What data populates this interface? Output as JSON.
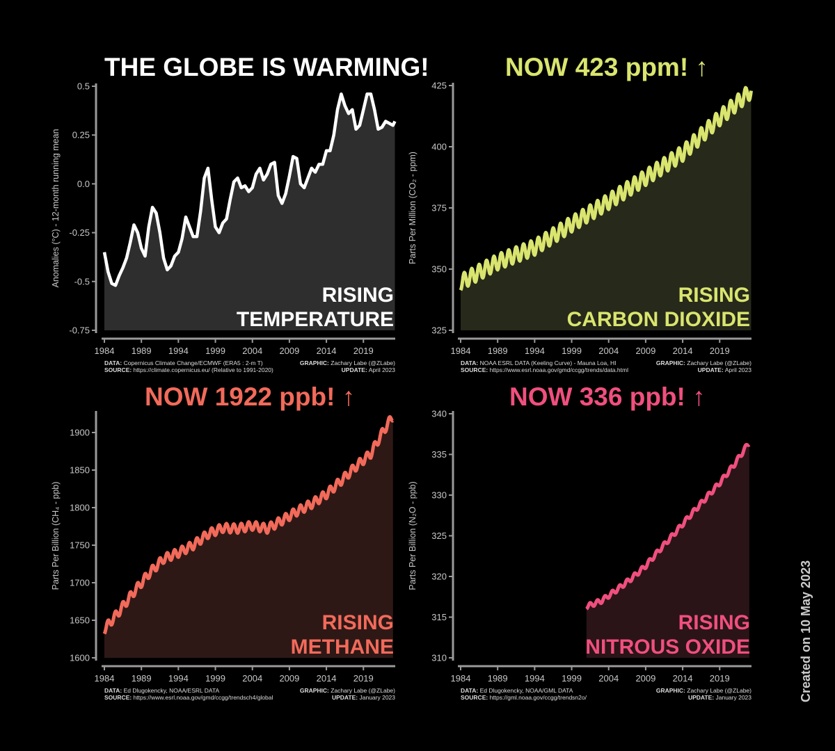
{
  "footer_note": "Created on 10 May 2023",
  "chart_data": [
    {
      "type": "area",
      "headline": "THE GLOBE IS WARMING!",
      "headline_color": "#ffffff",
      "label_lines": [
        "RISING",
        "TEMPERATURE"
      ],
      "ylabel": "Anomalies (°C) - 12-month running mean",
      "line_color": "#ffffff",
      "fill_color": "#2e2e2e",
      "ylim": [
        -0.75,
        0.5
      ],
      "yticks": [
        -0.75,
        -0.5,
        -0.25,
        0.0,
        0.25,
        0.5
      ],
      "ytick_labels": [
        "-0.75",
        "-0.5",
        "-0.25",
        "0.0",
        "0.25",
        "0.5"
      ],
      "xlim": [
        1984,
        2023.3
      ],
      "xticks": [
        1984,
        1989,
        1994,
        1999,
        2004,
        2009,
        2014,
        2019
      ],
      "x": [
        1984.0,
        1984.5,
        1985.0,
        1985.5,
        1986.0,
        1986.5,
        1987.0,
        1987.5,
        1988.0,
        1988.5,
        1989.0,
        1989.5,
        1990.0,
        1990.5,
        1991.0,
        1991.5,
        1992.0,
        1992.5,
        1993.0,
        1993.5,
        1994.0,
        1994.5,
        1995.0,
        1995.5,
        1996.0,
        1996.5,
        1997.0,
        1997.5,
        1998.0,
        1998.5,
        1999.0,
        1999.5,
        2000.0,
        2000.5,
        2001.0,
        2001.5,
        2002.0,
        2002.5,
        2003.0,
        2003.5,
        2004.0,
        2004.5,
        2005.0,
        2005.5,
        2006.0,
        2006.5,
        2007.0,
        2007.5,
        2008.0,
        2008.5,
        2009.0,
        2009.5,
        2010.0,
        2010.5,
        2011.0,
        2011.5,
        2012.0,
        2012.5,
        2013.0,
        2013.5,
        2014.0,
        2014.5,
        2015.0,
        2015.5,
        2016.0,
        2016.5,
        2017.0,
        2017.5,
        2018.0,
        2018.5,
        2019.0,
        2019.5,
        2020.0,
        2020.5,
        2021.0,
        2021.5,
        2022.0,
        2022.5,
        2023.0,
        2023.25
      ],
      "values": [
        -0.35,
        -0.45,
        -0.51,
        -0.52,
        -0.47,
        -0.43,
        -0.38,
        -0.3,
        -0.21,
        -0.25,
        -0.33,
        -0.37,
        -0.22,
        -0.12,
        -0.15,
        -0.25,
        -0.38,
        -0.44,
        -0.42,
        -0.37,
        -0.35,
        -0.28,
        -0.17,
        -0.22,
        -0.27,
        -0.27,
        -0.14,
        0.03,
        0.08,
        -0.08,
        -0.22,
        -0.25,
        -0.2,
        -0.18,
        -0.08,
        0.01,
        0.03,
        -0.02,
        -0.01,
        -0.04,
        -0.02,
        0.05,
        0.08,
        0.02,
        0.05,
        0.1,
        0.11,
        -0.06,
        -0.1,
        -0.05,
        0.04,
        0.14,
        0.13,
        0.0,
        -0.02,
        0.03,
        0.08,
        0.06,
        0.1,
        0.1,
        0.17,
        0.17,
        0.25,
        0.38,
        0.46,
        0.4,
        0.36,
        0.38,
        0.28,
        0.3,
        0.38,
        0.46,
        0.46,
        0.38,
        0.28,
        0.29,
        0.32,
        0.31,
        0.3,
        0.32
      ]
    },
    {
      "type": "area",
      "headline": "NOW 423 ppm! ↑",
      "headline_color": "#d9e56e",
      "label_lines": [
        "RISING",
        "CARBON DIOXIDE"
      ],
      "ylabel": "Parts Per Million (CO₂ - ppm)",
      "line_color": "#d9e56e",
      "fill_color": "#27291b",
      "ylim": [
        325,
        425
      ],
      "yticks": [
        325,
        350,
        375,
        400,
        425
      ],
      "ytick_labels": [
        "325",
        "350",
        "375",
        "400",
        "425"
      ],
      "xlim": [
        1984,
        2023.3
      ],
      "xticks": [
        1984,
        1989,
        1994,
        1999,
        2004,
        2009,
        2014,
        2019
      ],
      "x": [
        1984,
        1989,
        1994,
        1999,
        2004,
        2009,
        2014,
        2019,
        2023.3
      ],
      "values": [
        344.6,
        352.9,
        358.9,
        368.4,
        377.6,
        387.4,
        397.3,
        411.8,
        423.0
      ],
      "seasonal_amplitude_ppm": 3.2
    },
    {
      "type": "area",
      "headline": "NOW 1922 ppb! ↑",
      "headline_color": "#f26a5a",
      "label_lines": [
        "RISING",
        "METHANE"
      ],
      "ylabel": "Parts Per Billion (CH₄ - ppb)",
      "line_color": "#f26a5a",
      "fill_color": "#2e1816",
      "ylim": [
        1600,
        1925
      ],
      "yticks": [
        1600,
        1650,
        1700,
        1750,
        1800,
        1850,
        1900
      ],
      "ytick_labels": [
        "1600",
        "1650",
        "1700",
        "1750",
        "1800",
        "1850",
        "1900"
      ],
      "xlim": [
        1984,
        2023.3
      ],
      "xticks": [
        1984,
        1989,
        1994,
        1999,
        2004,
        2009,
        2014,
        2019
      ],
      "x": [
        1984,
        1986,
        1988,
        1990,
        1992,
        1994,
        1996,
        1998,
        2000,
        2002,
        2004,
        2006,
        2008,
        2010,
        2012,
        2014,
        2016,
        2018,
        2020,
        2021,
        2022,
        2023.0
      ],
      "values": [
        1638,
        1662,
        1688,
        1712,
        1732,
        1740,
        1750,
        1765,
        1773,
        1772,
        1776,
        1772,
        1783,
        1795,
        1805,
        1818,
        1836,
        1855,
        1872,
        1890,
        1907,
        1922
      ],
      "seasonal_amplitude_ppb": 6
    },
    {
      "type": "area",
      "headline": "NOW 336 ppb! ↑",
      "headline_color": "#f04f7e",
      "label_lines": [
        "RISING",
        "NITROUS OXIDE"
      ],
      "ylabel": "Parts Per Billion (N₂O - ppb)",
      "line_color": "#f04f7e",
      "fill_color": "#2a1418",
      "ylim": [
        310,
        340
      ],
      "yticks": [
        310,
        315,
        320,
        325,
        330,
        335,
        340
      ],
      "ytick_labels": [
        "310",
        "315",
        "320",
        "325",
        "330",
        "335",
        "340"
      ],
      "xlim": [
        1984,
        2023.3
      ],
      "xticks": [
        1984,
        1989,
        1994,
        1999,
        2004,
        2009,
        2014,
        2019
      ],
      "x": [
        2001,
        2003,
        2005,
        2007,
        2009,
        2011,
        2013,
        2015,
        2017,
        2019,
        2021,
        2023.0
      ],
      "values": [
        316.3,
        317.0,
        318.3,
        319.7,
        321.3,
        323.4,
        325.4,
        327.5,
        329.5,
        331.5,
        333.8,
        336.5
      ],
      "seasonal_amplitude_ppb": 0.3
    }
  ],
  "credits": [
    {
      "data_label": "DATA:",
      "data_text": "Copernicus Climate Change/ECMWF (ERA5 : 2-m T)",
      "source_label": "SOURCE:",
      "source_text": "https://climate.copernicus.eu/ (Relative to 1991-2020)",
      "graphic_label": "GRAPHIC:",
      "graphic_text": "Zachary Labe (@ZLabe)",
      "update_label": "UPDATE:",
      "update_text": "April 2023"
    },
    {
      "data_label": "DATA:",
      "data_text": "NOAA ESRL DATA (Keeling Curve) - Mauna Loa, HI",
      "source_label": "SOURCE:",
      "source_text": "https://www.esrl.noaa.gov/gmd/ccgg/trends/data.html",
      "graphic_label": "GRAPHIC:",
      "graphic_text": "Zachary Labe (@ZLabe)",
      "update_label": "UPDATE:",
      "update_text": "April 2023"
    },
    {
      "data_label": "DATA:",
      "data_text": "Ed Dlugokencky, NOAA/ESRL DATA",
      "source_label": "SOURCE:",
      "source_text": "https://www.esrl.noaa.gov/gmd/ccgg/trendsch4/global",
      "graphic_label": "GRAPHIC:",
      "graphic_text": "Zachary Labe (@ZLabe)",
      "update_label": "UPDATE:",
      "update_text": "January 2023"
    },
    {
      "data_label": "DATA:",
      "data_text": "Ed Dlugokencky, NOAA/GML DATA",
      "source_label": "SOURCE:",
      "source_text": "https://gml.noaa.gov/ccgg/trendsn2o/",
      "graphic_label": "GRAPHIC:",
      "graphic_text": "Zachary Labe (@ZLabe)",
      "update_label": "UPDATE:",
      "update_text": "January 2023"
    }
  ]
}
